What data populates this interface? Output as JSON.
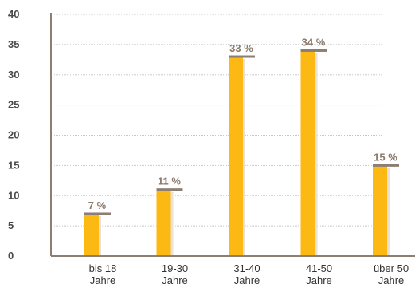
{
  "chart_data": {
    "type": "bar",
    "categories": [
      [
        "bis 18",
        "Jahre"
      ],
      [
        "19-30",
        "Jahre"
      ],
      [
        "31-40",
        "Jahre"
      ],
      [
        "41-50",
        "Jahre"
      ],
      [
        "über 50",
        "Jahre"
      ]
    ],
    "values": [
      7,
      11,
      33,
      34,
      15
    ],
    "data_labels": [
      "7 %",
      "11 %",
      "33 %",
      "34 %",
      "15 %"
    ],
    "ylim": [
      0,
      40
    ],
    "yticks": [
      0,
      5,
      10,
      15,
      20,
      25,
      30,
      35,
      40
    ],
    "grid": true,
    "legend": "none",
    "colors": {
      "bar": "#FDB913",
      "bar_shadow": "#E9E0D6",
      "bar_cap": "#8C7E72",
      "axis": "#8C7E72",
      "grid": "#C8C8C8"
    }
  }
}
